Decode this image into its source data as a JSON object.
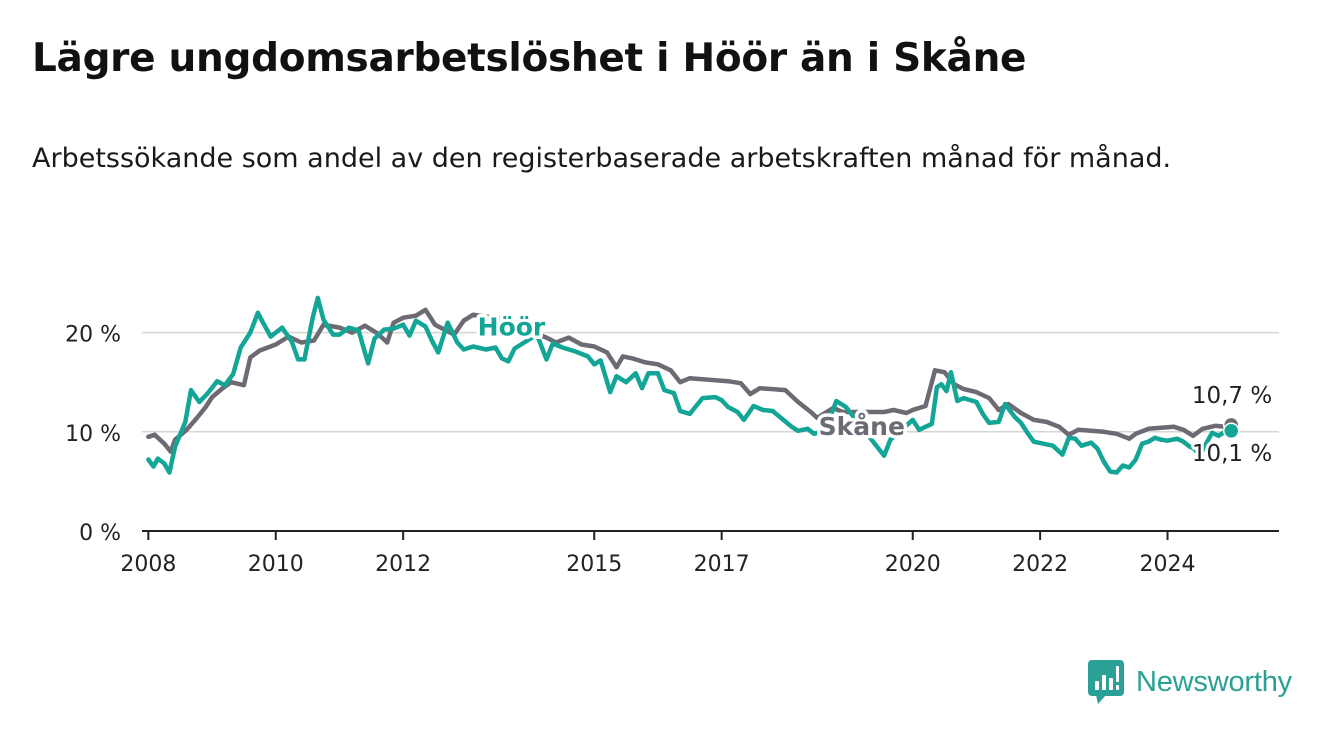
{
  "title": "Lägre ungdomsarbetslöshet i Höör än i Skåne",
  "subtitle": "Arbetssökande som andel av den registerbaserade arbetskraften månad för månad.",
  "brand": {
    "name": "Newsworthy",
    "color": "#2aa096"
  },
  "chart_data": {
    "type": "line",
    "ylim": [
      0,
      25
    ],
    "yticks": [
      {
        "value": 0,
        "label": "0 %"
      },
      {
        "value": 10,
        "label": "10 %"
      },
      {
        "value": 20,
        "label": "20 %"
      }
    ],
    "xlim": [
      2007.9,
      2025.75
    ],
    "xticks": [
      {
        "value": 2008,
        "label": "2008"
      },
      {
        "value": 2010,
        "label": "2010"
      },
      {
        "value": 2012,
        "label": "2012"
      },
      {
        "value": 2015,
        "label": "2015"
      },
      {
        "value": 2017,
        "label": "2017"
      },
      {
        "value": 2020,
        "label": "2020"
      },
      {
        "value": 2022,
        "label": "2022"
      },
      {
        "value": 2024,
        "label": "2024"
      }
    ],
    "grid": true,
    "series": [
      {
        "name": "Skåne",
        "color": "#6e6a73",
        "end_label": "10,7 %",
        "points": [
          [
            2008.0,
            9.5
          ],
          [
            2008.1,
            9.7
          ],
          [
            2008.25,
            8.8
          ],
          [
            2008.35,
            8.0
          ],
          [
            2008.42,
            9.2
          ],
          [
            2008.6,
            10.2
          ],
          [
            2008.75,
            11.3
          ],
          [
            2008.9,
            12.5
          ],
          [
            2009.0,
            13.5
          ],
          [
            2009.15,
            14.3
          ],
          [
            2009.3,
            15.0
          ],
          [
            2009.5,
            14.7
          ],
          [
            2009.6,
            17.5
          ],
          [
            2009.75,
            18.2
          ],
          [
            2010.0,
            18.8
          ],
          [
            2010.2,
            19.6
          ],
          [
            2010.4,
            19.0
          ],
          [
            2010.6,
            19.2
          ],
          [
            2010.75,
            20.8
          ],
          [
            2011.0,
            20.5
          ],
          [
            2011.2,
            20.0
          ],
          [
            2011.4,
            20.7
          ],
          [
            2011.6,
            19.9
          ],
          [
            2011.75,
            19.0
          ],
          [
            2011.85,
            21.0
          ],
          [
            2012.0,
            21.5
          ],
          [
            2012.2,
            21.7
          ],
          [
            2012.35,
            22.3
          ],
          [
            2012.5,
            20.8
          ],
          [
            2012.8,
            19.8
          ],
          [
            2012.95,
            21.2
          ],
          [
            2013.1,
            21.8
          ],
          [
            2013.3,
            21.6
          ],
          [
            2013.5,
            21.5
          ],
          [
            2013.55,
            21.3
          ],
          [
            2014.25,
            19.5
          ],
          [
            2014.4,
            19.0
          ],
          [
            2014.6,
            19.5
          ],
          [
            2014.8,
            18.8
          ],
          [
            2015.0,
            18.6
          ],
          [
            2015.2,
            18.0
          ],
          [
            2015.35,
            16.5
          ],
          [
            2015.45,
            17.6
          ],
          [
            2015.6,
            17.4
          ],
          [
            2015.8,
            17.0
          ],
          [
            2016.0,
            16.8
          ],
          [
            2016.2,
            16.2
          ],
          [
            2016.35,
            15.0
          ],
          [
            2016.5,
            15.4
          ],
          [
            2016.7,
            15.3
          ],
          [
            2016.9,
            15.2
          ],
          [
            2017.1,
            15.1
          ],
          [
            2017.3,
            14.9
          ],
          [
            2017.45,
            13.8
          ],
          [
            2017.6,
            14.4
          ],
          [
            2017.8,
            14.3
          ],
          [
            2018.0,
            14.2
          ],
          [
            2018.2,
            13.0
          ],
          [
            2018.4,
            12.0
          ],
          [
            2018.5,
            11.4
          ],
          [
            2018.6,
            11.8
          ],
          [
            2018.75,
            12.4
          ],
          [
            2018.9,
            12.0
          ],
          [
            2019.55,
            12.0
          ],
          [
            2019.7,
            12.2
          ],
          [
            2019.9,
            11.9
          ],
          [
            2020.0,
            12.2
          ],
          [
            2020.2,
            12.6
          ],
          [
            2020.35,
            16.2
          ],
          [
            2020.5,
            16.0
          ],
          [
            2020.65,
            14.8
          ],
          [
            2020.8,
            14.3
          ],
          [
            2021.0,
            14.0
          ],
          [
            2021.2,
            13.4
          ],
          [
            2021.35,
            12.2
          ],
          [
            2021.5,
            12.8
          ],
          [
            2021.7,
            11.9
          ],
          [
            2021.9,
            11.2
          ],
          [
            2022.1,
            11.0
          ],
          [
            2022.3,
            10.5
          ],
          [
            2022.45,
            9.7
          ],
          [
            2022.6,
            10.2
          ],
          [
            2022.8,
            10.1
          ],
          [
            2023.0,
            10.0
          ],
          [
            2023.2,
            9.8
          ],
          [
            2023.4,
            9.3
          ],
          [
            2023.5,
            9.8
          ],
          [
            2023.7,
            10.3
          ],
          [
            2023.9,
            10.4
          ],
          [
            2024.1,
            10.5
          ],
          [
            2024.25,
            10.2
          ],
          [
            2024.4,
            9.6
          ],
          [
            2024.55,
            10.3
          ],
          [
            2024.75,
            10.6
          ],
          [
            2024.9,
            10.5
          ],
          [
            2025.0,
            10.7
          ]
        ]
      },
      {
        "name": "Höör",
        "color": "#13a596",
        "end_label": "10,1 %",
        "points": [
          [
            2008.0,
            7.2
          ],
          [
            2008.08,
            6.5
          ],
          [
            2008.15,
            7.3
          ],
          [
            2008.25,
            6.8
          ],
          [
            2008.33,
            5.9
          ],
          [
            2008.42,
            8.5
          ],
          [
            2008.58,
            11.0
          ],
          [
            2008.67,
            14.2
          ],
          [
            2008.8,
            13.0
          ],
          [
            2008.92,
            13.8
          ],
          [
            2009.08,
            15.1
          ],
          [
            2009.2,
            14.7
          ],
          [
            2009.33,
            15.8
          ],
          [
            2009.45,
            18.5
          ],
          [
            2009.6,
            20.0
          ],
          [
            2009.72,
            22.0
          ],
          [
            2009.8,
            21.0
          ],
          [
            2009.92,
            19.6
          ],
          [
            2010.1,
            20.5
          ],
          [
            2010.25,
            19.1
          ],
          [
            2010.35,
            17.3
          ],
          [
            2010.45,
            17.3
          ],
          [
            2010.58,
            21.5
          ],
          [
            2010.66,
            23.5
          ],
          [
            2010.75,
            21.3
          ],
          [
            2010.9,
            19.8
          ],
          [
            2011.0,
            19.8
          ],
          [
            2011.15,
            20.5
          ],
          [
            2011.3,
            20.2
          ],
          [
            2011.45,
            16.9
          ],
          [
            2011.55,
            19.4
          ],
          [
            2011.7,
            20.3
          ],
          [
            2011.85,
            20.4
          ],
          [
            2012.0,
            20.8
          ],
          [
            2012.1,
            19.7
          ],
          [
            2012.2,
            21.2
          ],
          [
            2012.35,
            20.6
          ],
          [
            2012.45,
            19.2
          ],
          [
            2012.55,
            18.0
          ],
          [
            2012.7,
            21.0
          ],
          [
            2012.85,
            19.0
          ],
          [
            2012.95,
            18.3
          ],
          [
            2013.1,
            18.6
          ],
          [
            2013.3,
            18.3
          ],
          [
            2013.45,
            18.5
          ],
          [
            2013.55,
            17.4
          ],
          [
            2013.65,
            17.1
          ],
          [
            2013.75,
            18.4
          ],
          [
            2014.1,
            19.8
          ],
          [
            2014.25,
            17.3
          ],
          [
            2014.35,
            18.9
          ],
          [
            2014.5,
            18.5
          ],
          [
            2014.7,
            18.1
          ],
          [
            2014.9,
            17.6
          ],
          [
            2015.0,
            16.8
          ],
          [
            2015.1,
            17.2
          ],
          [
            2015.25,
            14.0
          ],
          [
            2015.35,
            15.6
          ],
          [
            2015.5,
            15.0
          ],
          [
            2015.65,
            15.9
          ],
          [
            2015.75,
            14.4
          ],
          [
            2015.85,
            15.9
          ],
          [
            2016.0,
            15.9
          ],
          [
            2016.1,
            14.2
          ],
          [
            2016.25,
            13.9
          ],
          [
            2016.35,
            12.1
          ],
          [
            2016.5,
            11.8
          ],
          [
            2016.7,
            13.4
          ],
          [
            2016.9,
            13.5
          ],
          [
            2017.0,
            13.2
          ],
          [
            2017.1,
            12.5
          ],
          [
            2017.25,
            12.0
          ],
          [
            2017.35,
            11.2
          ],
          [
            2017.5,
            12.6
          ],
          [
            2017.65,
            12.2
          ],
          [
            2017.8,
            12.1
          ],
          [
            2017.95,
            11.3
          ],
          [
            2018.1,
            10.5
          ],
          [
            2018.2,
            10.1
          ],
          [
            2018.35,
            10.3
          ],
          [
            2018.45,
            9.8
          ],
          [
            2018.55,
            10.0
          ],
          [
            2018.7,
            11.4
          ],
          [
            2018.8,
            13.1
          ],
          [
            2018.95,
            12.5
          ],
          [
            2019.5,
            8.0
          ],
          [
            2019.55,
            7.6
          ],
          [
            2019.65,
            9.2
          ],
          [
            2020.0,
            11.2
          ],
          [
            2020.1,
            10.2
          ],
          [
            2020.2,
            10.5
          ],
          [
            2020.3,
            10.8
          ],
          [
            2020.38,
            14.5
          ],
          [
            2020.45,
            14.8
          ],
          [
            2020.53,
            14.1
          ],
          [
            2020.6,
            16.0
          ],
          [
            2020.7,
            13.1
          ],
          [
            2020.8,
            13.4
          ],
          [
            2021.0,
            13.0
          ],
          [
            2021.1,
            11.8
          ],
          [
            2021.2,
            10.9
          ],
          [
            2021.35,
            11.0
          ],
          [
            2021.45,
            12.8
          ],
          [
            2021.6,
            11.5
          ],
          [
            2021.7,
            10.9
          ],
          [
            2021.8,
            9.9
          ],
          [
            2021.9,
            9.0
          ],
          [
            2022.05,
            8.8
          ],
          [
            2022.2,
            8.6
          ],
          [
            2022.35,
            7.7
          ],
          [
            2022.45,
            9.4
          ],
          [
            2022.55,
            9.3
          ],
          [
            2022.65,
            8.6
          ],
          [
            2022.8,
            8.9
          ],
          [
            2022.9,
            8.3
          ],
          [
            2023.0,
            7.0
          ],
          [
            2023.1,
            6.0
          ],
          [
            2023.2,
            5.9
          ],
          [
            2023.3,
            6.6
          ],
          [
            2023.4,
            6.4
          ],
          [
            2023.5,
            7.2
          ],
          [
            2023.6,
            8.8
          ],
          [
            2023.7,
            9.0
          ],
          [
            2023.8,
            9.4
          ],
          [
            2023.9,
            9.2
          ],
          [
            2024.0,
            9.1
          ],
          [
            2024.15,
            9.3
          ],
          [
            2024.25,
            9.0
          ],
          [
            2024.35,
            8.5
          ],
          [
            2024.42,
            8.3
          ],
          [
            2024.5,
            7.6
          ],
          [
            2024.7,
            9.9
          ],
          [
            2024.8,
            9.6
          ],
          [
            2024.9,
            10.0
          ],
          [
            2025.0,
            10.1
          ]
        ]
      }
    ],
    "inline_labels": [
      {
        "series": "Höör",
        "text": "Höör",
        "x": 2013.7,
        "y": 20.6
      },
      {
        "series": "Skåne",
        "text": "Skåne",
        "x": 2019.2,
        "y": 10.6
      }
    ]
  }
}
